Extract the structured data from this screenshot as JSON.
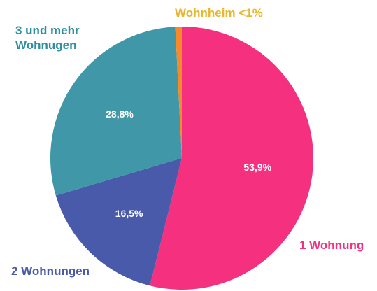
{
  "chart_data": {
    "type": "pie",
    "categories": [
      "1 Wohnung",
      "2 Wohnungen",
      "3 und mehr Wohnugen",
      "Wohnheim"
    ],
    "values": [
      53.9,
      16.5,
      28.8,
      0.8
    ],
    "value_labels": [
      "53,9%",
      "16,5%",
      "28,8%",
      "<1%"
    ],
    "colors": [
      "#f5317f",
      "#4a5aaa",
      "#3f97a8",
      "#f58a2a"
    ]
  }
}
